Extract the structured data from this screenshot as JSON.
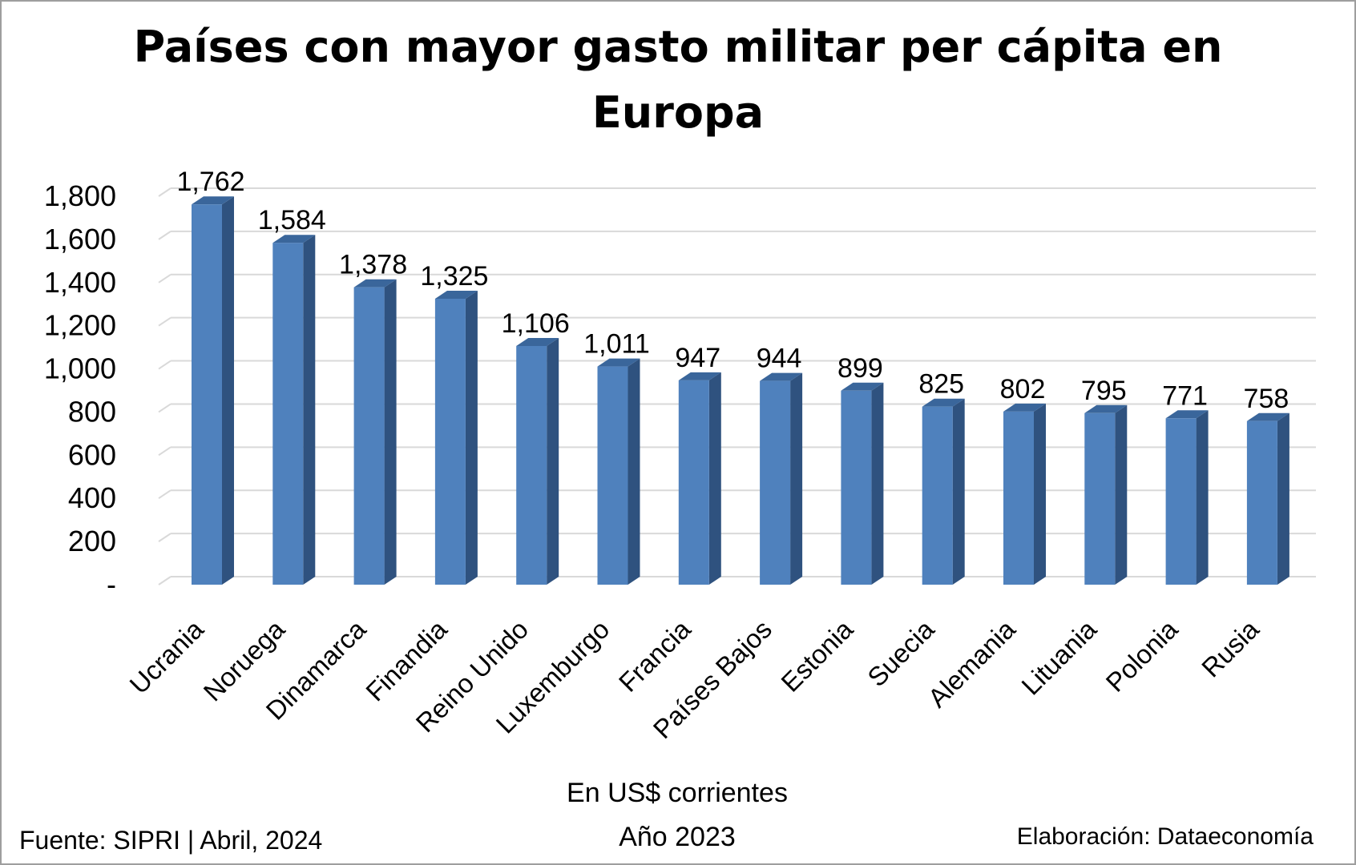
{
  "chart_data": {
    "type": "bar",
    "title": "Países con mayor gasto militar per cápita en Europa",
    "categories": [
      "Ucrania",
      "Noruega",
      "Dinamarca",
      "Finandia",
      "Reino Unido",
      "Luxemburgo",
      "Francia",
      "Países Bajos",
      "Estonia",
      "Suecia",
      "Alemania",
      "Lituania",
      "Polonia",
      "Rusia"
    ],
    "values": [
      1762,
      1584,
      1378,
      1325,
      1106,
      1011,
      947,
      944,
      899,
      825,
      802,
      795,
      771,
      758
    ],
    "data_labels": [
      "1,762",
      "1,584",
      "1,378",
      "1,325",
      "1,106",
      "1,011",
      "947",
      "944",
      "899",
      "825",
      "802",
      "795",
      "771",
      "758"
    ],
    "ylim": [
      0,
      1800
    ],
    "yticks": [
      0,
      200,
      400,
      600,
      800,
      1000,
      1200,
      1400,
      1600,
      1800
    ],
    "ytick_labels": [
      "-",
      "200",
      "400",
      "600",
      "800",
      "1,000",
      "1,200",
      "1,400",
      "1,600",
      "1,800"
    ],
    "grid": true,
    "bar_style": "3d",
    "colors": {
      "bar_front": "#4f81bd",
      "bar_side": "#2f527f",
      "bar_top": "#3a669b",
      "grid": "#d9d9d9"
    },
    "xlabel_lines": [
      "En US$ corrientes",
      "Año 2023"
    ],
    "source": "Fuente: SIPRI | Abril, 2024",
    "credit": "Elaboración: Dataeconomía"
  }
}
